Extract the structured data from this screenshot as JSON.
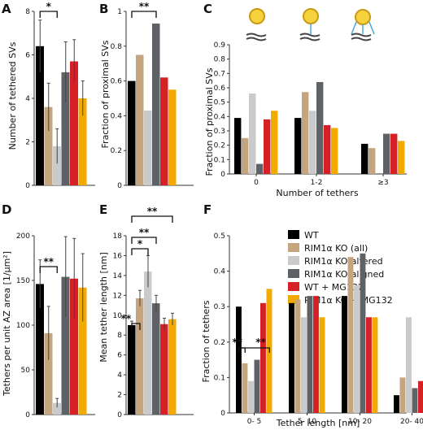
{
  "colors": {
    "WT": "#000000",
    "RIM1α KO (all)": "#c4a57e",
    "RIM1α KO-altered": "#c8cacc",
    "RIM1α KO-aligned": "#5e6166",
    "WT + MG132": "#d71f26",
    "RIM1α KO + MG132": "#f2a900"
  },
  "legend": {
    "entries": [
      "WT",
      "RIM1α KO (all)",
      "RIM1α KO-altered",
      "RIM1α KO-aligned",
      "WT + MG132",
      "RIM1α KO + MG132"
    ]
  },
  "chart_data": [
    {
      "panel": "A",
      "type": "bar",
      "ylabel": "Number of tethered SVs",
      "ylim": [
        0,
        8
      ],
      "yticks": [
        0,
        2,
        4,
        6,
        8
      ],
      "values": [
        6.4,
        3.6,
        1.8,
        5.2,
        5.7,
        4.0
      ],
      "errors": [
        1.2,
        1.1,
        0.8,
        1.4,
        1.0,
        0.8
      ],
      "significance": [
        {
          "label": "*",
          "bars": [
            0,
            2
          ]
        }
      ]
    },
    {
      "panel": "B",
      "type": "bar",
      "ylabel": "Fraction of proximal SVs",
      "ylim": [
        0,
        1.0
      ],
      "yticks": [
        0,
        0.2,
        0.4,
        0.6,
        0.8,
        1.0
      ],
      "values": [
        0.6,
        0.75,
        0.43,
        0.93,
        0.62,
        0.55
      ],
      "significance": [
        {
          "label": "**",
          "bars": [
            0,
            3
          ]
        }
      ]
    },
    {
      "panel": "C",
      "type": "bar",
      "ylabel": "Fraction of proximal SVs",
      "xlabel": "Number of tethers",
      "ylim": [
        0,
        0.9
      ],
      "yticks": [
        0,
        0.1,
        0.2,
        0.3,
        0.4,
        0.5,
        0.6,
        0.7,
        0.8,
        0.9
      ],
      "categories": [
        "0",
        "1-2",
        "≥3"
      ],
      "series": [
        {
          "name": "WT",
          "values": [
            0.39,
            0.39,
            0.21
          ]
        },
        {
          "name": "RIM1α KO (all)",
          "values": [
            0.25,
            0.57,
            0.18
          ]
        },
        {
          "name": "RIM1α KO-altered",
          "values": [
            0.56,
            0.44,
            0.0
          ]
        },
        {
          "name": "RIM1α KO-aligned",
          "values": [
            0.07,
            0.64,
            0.28
          ]
        },
        {
          "name": "WT + MG132",
          "values": [
            0.38,
            0.34,
            0.28
          ]
        },
        {
          "name": "RIM1α KO + MG132",
          "values": [
            0.44,
            0.32,
            0.23
          ]
        }
      ]
    },
    {
      "panel": "D",
      "type": "bar",
      "ylabel": "Tethers per unit AZ area [1/μm²]",
      "ylim": [
        0,
        200
      ],
      "yticks": [
        0,
        50,
        100,
        150,
        200
      ],
      "values": [
        146,
        91,
        13,
        154,
        152,
        142
      ],
      "errors": [
        27,
        30,
        5,
        45,
        45,
        38
      ],
      "significance": [
        {
          "label": "**",
          "bars": [
            0,
            2
          ]
        }
      ]
    },
    {
      "panel": "E",
      "type": "bar",
      "ylabel": "Mean tether length [nm]",
      "ylim": [
        0,
        18
      ],
      "yticks": [
        0,
        2,
        4,
        6,
        8,
        10,
        12,
        14,
        16,
        18
      ],
      "values": [
        9.0,
        11.7,
        14.4,
        11.2,
        9.1,
        9.6
      ],
      "errors": [
        0.4,
        0.8,
        1.6,
        0.8,
        0.6,
        0.6
      ],
      "significance": [
        {
          "label": "**",
          "bars": [
            0,
            1
          ]
        },
        {
          "label": "*",
          "bars": [
            0,
            2
          ]
        },
        {
          "label": "**",
          "bars": [
            0,
            3
          ]
        },
        {
          "label": "**",
          "bars": [
            0,
            5
          ]
        }
      ]
    },
    {
      "panel": "F",
      "type": "bar",
      "ylabel": "Fraction of tethers",
      "xlabel": "Tether length [nm]",
      "ylim": [
        0,
        0.5
      ],
      "yticks": [
        0,
        0.1,
        0.2,
        0.3,
        0.4,
        0.5
      ],
      "categories": [
        "0-  5",
        "5- 10",
        "10- 20",
        "20- 40"
      ],
      "series": [
        {
          "name": "WT",
          "values": [
            0.3,
            0.31,
            0.33,
            0.05
          ]
        },
        {
          "name": "RIM1α KO (all)",
          "values": [
            0.14,
            0.32,
            0.44,
            0.1
          ]
        },
        {
          "name": "RIM1α KO-altered",
          "values": [
            0.09,
            0.27,
            0.36,
            0.27
          ]
        },
        {
          "name": "RIM1α KO-aligned",
          "values": [
            0.15,
            0.33,
            0.45,
            0.07
          ]
        },
        {
          "name": "WT + MG132",
          "values": [
            0.31,
            0.33,
            0.27,
            0.09
          ]
        },
        {
          "name": "RIM1α KO + MG132",
          "values": [
            0.35,
            0.27,
            0.27,
            0.11
          ]
        }
      ],
      "significance": [
        {
          "label": "**",
          "category": 0,
          "bars": [
            0,
            1
          ]
        },
        {
          "label": "**",
          "category": 0,
          "bars": [
            0,
            5
          ]
        }
      ]
    }
  ]
}
